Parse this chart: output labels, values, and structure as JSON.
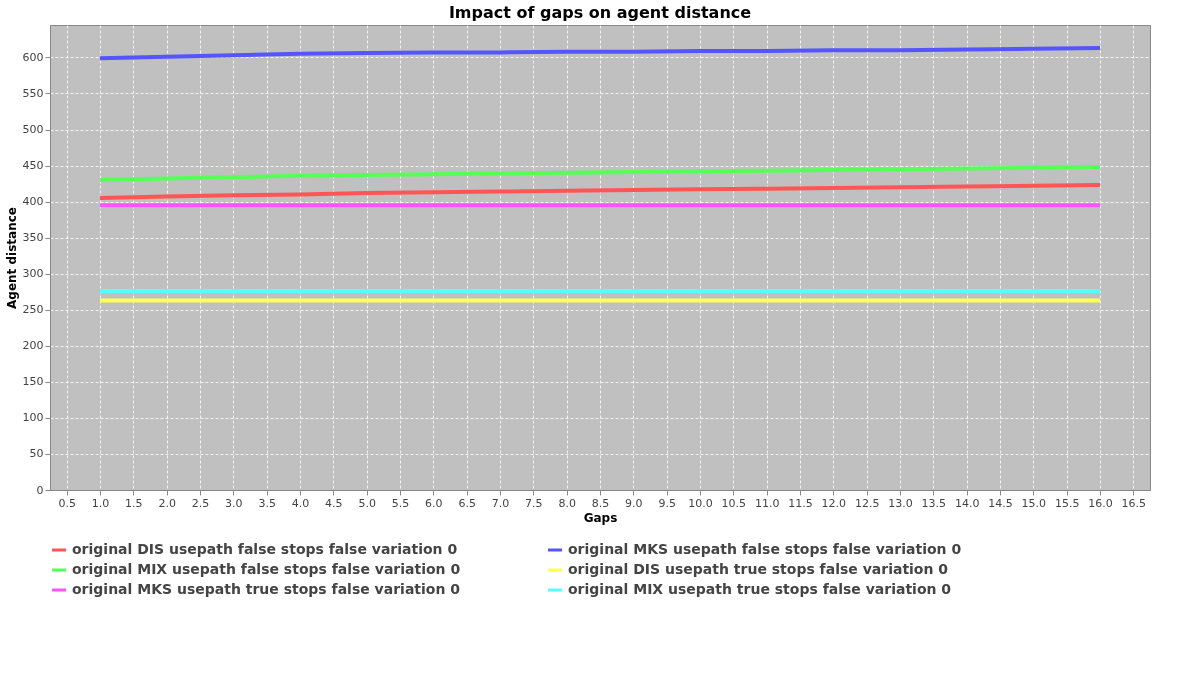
{
  "chart_data": {
    "type": "line",
    "title": "Impact of gaps on agent distance",
    "xlabel": "Gaps",
    "ylabel": "Agent distance",
    "x": [
      1,
      2,
      3,
      4,
      5,
      6,
      7,
      8,
      9,
      10,
      11,
      12,
      13,
      14,
      15,
      16
    ],
    "xlim": [
      0.25,
      16.75
    ],
    "xticks": [
      0.5,
      {
        "value": 1,
        "label": "1.0"
      },
      1.5,
      {
        "value": 2,
        "label": "2.0"
      },
      2.5,
      {
        "value": 3,
        "label": "3.0"
      },
      3.5,
      {
        "value": 4,
        "label": "4.0"
      },
      4.5,
      {
        "value": 5,
        "label": "5.0"
      },
      5.5,
      {
        "value": 6,
        "label": "6.0"
      },
      6.5,
      {
        "value": 7,
        "label": "7.0"
      },
      7.5,
      {
        "value": 8,
        "label": "8.0"
      },
      8.5,
      {
        "value": 9,
        "label": "9.0"
      },
      9.5,
      {
        "value": 10,
        "label": "10.0"
      },
      10.5,
      {
        "value": 11,
        "label": "11.0"
      },
      11.5,
      {
        "value": 12,
        "label": "12.0"
      },
      12.5,
      {
        "value": 13,
        "label": "13.0"
      },
      13.5,
      {
        "value": 14,
        "label": "14.0"
      },
      14.5,
      {
        "value": 15,
        "label": "15.0"
      },
      15.5,
      {
        "value": 16,
        "label": "16.0"
      },
      16.5
    ],
    "ylim": [
      0,
      645
    ],
    "yticks": [
      0,
      50,
      100,
      150,
      200,
      250,
      300,
      350,
      400,
      450,
      500,
      550,
      600
    ],
    "grid": true,
    "legend": "bottom",
    "marker": "none",
    "line_style": "solid",
    "series": [
      {
        "name": "original DIS usepath false stops false variation 0",
        "color": "#ff5555",
        "values": [
          405,
          407,
          409,
          410,
          412,
          413,
          414,
          415,
          416,
          417,
          418,
          419,
          420,
          421,
          422,
          423
        ]
      },
      {
        "name": "original MKS usepath false stops false variation 0",
        "color": "#5555ff",
        "values": [
          599,
          601,
          603,
          605,
          606,
          607,
          607,
          608,
          608,
          609,
          609,
          610,
          610,
          611,
          612,
          613
        ]
      },
      {
        "name": "original MIX usepath false stops false variation 0",
        "color": "#55ff55",
        "values": [
          430,
          432,
          434,
          436,
          437,
          438,
          439,
          440,
          441,
          442,
          443,
          444,
          445,
          446,
          447,
          448
        ]
      },
      {
        "name": "original DIS usepath true stops false variation 0",
        "color": "#ffff55",
        "values": [
          263,
          263,
          263,
          263,
          263,
          263,
          263,
          263,
          263,
          263,
          263,
          263,
          263,
          263,
          263,
          263
        ]
      },
      {
        "name": "original MKS usepath true stops false variation 0",
        "color": "#ff55ff",
        "values": [
          395,
          395,
          395,
          395,
          395,
          395,
          395,
          395,
          395,
          395,
          395,
          395,
          395,
          395,
          395,
          395
        ]
      },
      {
        "name": "original MIX usepath true stops false variation 0",
        "color": "#55ffff",
        "values": [
          276,
          276,
          276,
          276,
          276,
          276,
          276,
          276,
          276,
          276,
          276,
          276,
          276,
          276,
          276,
          276
        ]
      }
    ]
  }
}
